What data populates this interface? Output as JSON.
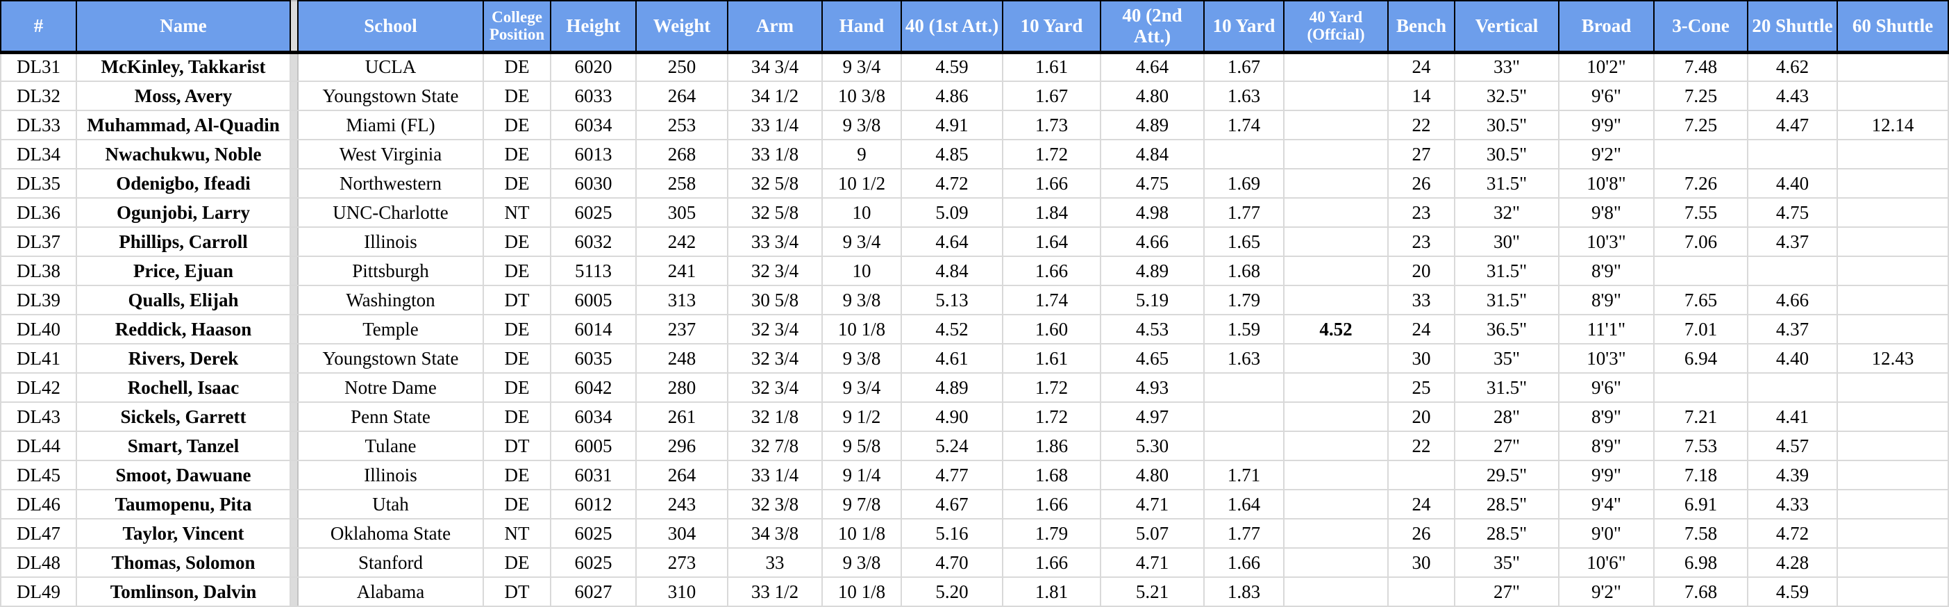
{
  "table": {
    "columns": [
      {
        "key": "number",
        "label": "#"
      },
      {
        "key": "name",
        "label": "Name"
      },
      {
        "key": "school",
        "label": "School"
      },
      {
        "key": "college_position",
        "label": "College Position"
      },
      {
        "key": "height",
        "label": "Height"
      },
      {
        "key": "weight",
        "label": "Weight"
      },
      {
        "key": "arm",
        "label": "Arm"
      },
      {
        "key": "hand",
        "label": "Hand"
      },
      {
        "key": "forty_first_att",
        "label": "40 (1st Att.)"
      },
      {
        "key": "ten_yard_1",
        "label": "10 Yard"
      },
      {
        "key": "forty_second_att",
        "label": "40 (2nd Att.)"
      },
      {
        "key": "ten_yard_2",
        "label": "10 Yard"
      },
      {
        "key": "forty_official",
        "label": "40 Yard (Offcial)"
      },
      {
        "key": "bench",
        "label": "Bench"
      },
      {
        "key": "vertical",
        "label": "Vertical"
      },
      {
        "key": "broad",
        "label": "Broad"
      },
      {
        "key": "three_cone",
        "label": "3-Cone"
      },
      {
        "key": "twenty_shuttle",
        "label": "20 Shuttle"
      },
      {
        "key": "sixty_shuttle",
        "label": "60 Shuttle"
      }
    ],
    "rows": [
      {
        "cells": [
          "DL31",
          "McKinley, Takkarist",
          "UCLA",
          "DE",
          "6020",
          "250",
          "34 3/4",
          "9 3/4",
          "4.59",
          "1.61",
          "4.64",
          "1.67",
          "",
          "24",
          "33\"",
          "10'2\"",
          "7.48",
          "4.62",
          ""
        ]
      },
      {
        "cells": [
          "DL32",
          "Moss, Avery",
          "Youngstown State",
          "DE",
          "6033",
          "264",
          "34 1/2",
          "10 3/8",
          "4.86",
          "1.67",
          "4.80",
          "1.63",
          "",
          "14",
          "32.5\"",
          "9'6\"",
          "7.25",
          "4.43",
          ""
        ]
      },
      {
        "cells": [
          "DL33",
          "Muhammad, Al-Quadin",
          "Miami (FL)",
          "DE",
          "6034",
          "253",
          "33 1/4",
          "9 3/8",
          "4.91",
          "1.73",
          "4.89",
          "1.74",
          "",
          "22",
          "30.5\"",
          "9'9\"",
          "7.25",
          "4.47",
          "12.14"
        ]
      },
      {
        "cells": [
          "DL34",
          "Nwachukwu, Noble",
          "West Virginia",
          "DE",
          "6013",
          "268",
          "33 1/8",
          "9",
          "4.85",
          "1.72",
          "4.84",
          "",
          "",
          "27",
          "30.5\"",
          "9'2\"",
          "",
          "",
          ""
        ]
      },
      {
        "cells": [
          "DL35",
          "Odenigbo, Ifeadi",
          "Northwestern",
          "DE",
          "6030",
          "258",
          "32 5/8",
          "10 1/2",
          "4.72",
          "1.66",
          "4.75",
          "1.69",
          "",
          "26",
          "31.5\"",
          "10'8\"",
          "7.26",
          "4.40",
          ""
        ]
      },
      {
        "cells": [
          "DL36",
          "Ogunjobi, Larry",
          "UNC-Charlotte",
          "NT",
          "6025",
          "305",
          "32 5/8",
          "10",
          "5.09",
          "1.84",
          "4.98",
          "1.77",
          "",
          "23",
          "32\"",
          "9'8\"",
          "7.55",
          "4.75",
          ""
        ]
      },
      {
        "cells": [
          "DL37",
          "Phillips, Carroll",
          "Illinois",
          "DE",
          "6032",
          "242",
          "33 3/4",
          "9 3/4",
          "4.64",
          "1.64",
          "4.66",
          "1.65",
          "",
          "23",
          "30\"",
          "10'3\"",
          "7.06",
          "4.37",
          ""
        ]
      },
      {
        "cells": [
          "DL38",
          "Price, Ejuan",
          "Pittsburgh",
          "DE",
          "5113",
          "241",
          "32 3/4",
          "10",
          "4.84",
          "1.66",
          "4.89",
          "1.68",
          "",
          "20",
          "31.5\"",
          "8'9\"",
          "",
          "",
          ""
        ]
      },
      {
        "cells": [
          "DL39",
          "Qualls, Elijah",
          "Washington",
          "DT",
          "6005",
          "313",
          "30 5/8",
          "9 3/8",
          "5.13",
          "1.74",
          "5.19",
          "1.79",
          "",
          "33",
          "31.5\"",
          "8'9\"",
          "7.65",
          "4.66",
          ""
        ]
      },
      {
        "cells": [
          "DL40",
          "Reddick, Haason",
          "Temple",
          "DE",
          "6014",
          "237",
          "32 3/4",
          "10 1/8",
          "4.52",
          "1.60",
          "4.53",
          "1.59",
          "4.52",
          "24",
          "36.5\"",
          "11'1\"",
          "7.01",
          "4.37",
          ""
        ],
        "bold": [
          12
        ]
      },
      {
        "cells": [
          "DL41",
          "Rivers, Derek",
          "Youngstown State",
          "DE",
          "6035",
          "248",
          "32 3/4",
          "9 3/8",
          "4.61",
          "1.61",
          "4.65",
          "1.63",
          "",
          "30",
          "35\"",
          "10'3\"",
          "6.94",
          "4.40",
          "12.43"
        ]
      },
      {
        "cells": [
          "DL42",
          "Rochell, Isaac",
          "Notre Dame",
          "DE",
          "6042",
          "280",
          "32 3/4",
          "9 3/4",
          "4.89",
          "1.72",
          "4.93",
          "",
          "",
          "25",
          "31.5\"",
          "9'6\"",
          "",
          "",
          ""
        ]
      },
      {
        "cells": [
          "DL43",
          "Sickels, Garrett",
          "Penn State",
          "DE",
          "6034",
          "261",
          "32 1/8",
          "9 1/2",
          "4.90",
          "1.72",
          "4.97",
          "",
          "",
          "20",
          "28\"",
          "8'9\"",
          "7.21",
          "4.41",
          ""
        ]
      },
      {
        "cells": [
          "DL44",
          "Smart, Tanzel",
          "Tulane",
          "DT",
          "6005",
          "296",
          "32 7/8",
          "9 5/8",
          "5.24",
          "1.86",
          "5.30",
          "",
          "",
          "22",
          "27\"",
          "8'9\"",
          "7.53",
          "4.57",
          ""
        ]
      },
      {
        "cells": [
          "DL45",
          "Smoot, Dawuane",
          "Illinois",
          "DE",
          "6031",
          "264",
          "33 1/4",
          "9 1/4",
          "4.77",
          "1.68",
          "4.80",
          "1.71",
          "",
          "",
          "29.5\"",
          "9'9\"",
          "7.18",
          "4.39",
          ""
        ]
      },
      {
        "cells": [
          "DL46",
          "Taumopenu, Pita",
          "Utah",
          "DE",
          "6012",
          "243",
          "32 3/8",
          "9 7/8",
          "4.67",
          "1.66",
          "4.71",
          "1.64",
          "",
          "24",
          "28.5\"",
          "9'4\"",
          "6.91",
          "4.33",
          ""
        ]
      },
      {
        "cells": [
          "DL47",
          "Taylor, Vincent",
          "Oklahoma State",
          "NT",
          "6025",
          "304",
          "34 3/8",
          "10 1/8",
          "5.16",
          "1.79",
          "5.07",
          "1.77",
          "",
          "26",
          "28.5\"",
          "9'0\"",
          "7.58",
          "4.72",
          ""
        ]
      },
      {
        "cells": [
          "DL48",
          "Thomas, Solomon",
          "Stanford",
          "DE",
          "6025",
          "273",
          "33",
          "9 3/8",
          "4.70",
          "1.66",
          "4.71",
          "1.66",
          "",
          "30",
          "35\"",
          "10'6\"",
          "6.98",
          "4.28",
          ""
        ]
      },
      {
        "cells": [
          "DL49",
          "Tomlinson, Dalvin",
          "Alabama",
          "DT",
          "6027",
          "310",
          "33 1/2",
          "10 1/8",
          "5.20",
          "1.81",
          "5.21",
          "1.83",
          "",
          "",
          "27\"",
          "9'2\"",
          "7.68",
          "4.59",
          ""
        ]
      }
    ]
  },
  "colors": {
    "header_background": "#6d9eeb",
    "header_text": "#ffffff",
    "header_border": "#000000",
    "gridline": "#d9d9d9",
    "pane_divider": "#dcdcdc",
    "cell_text": "#000000"
  }
}
